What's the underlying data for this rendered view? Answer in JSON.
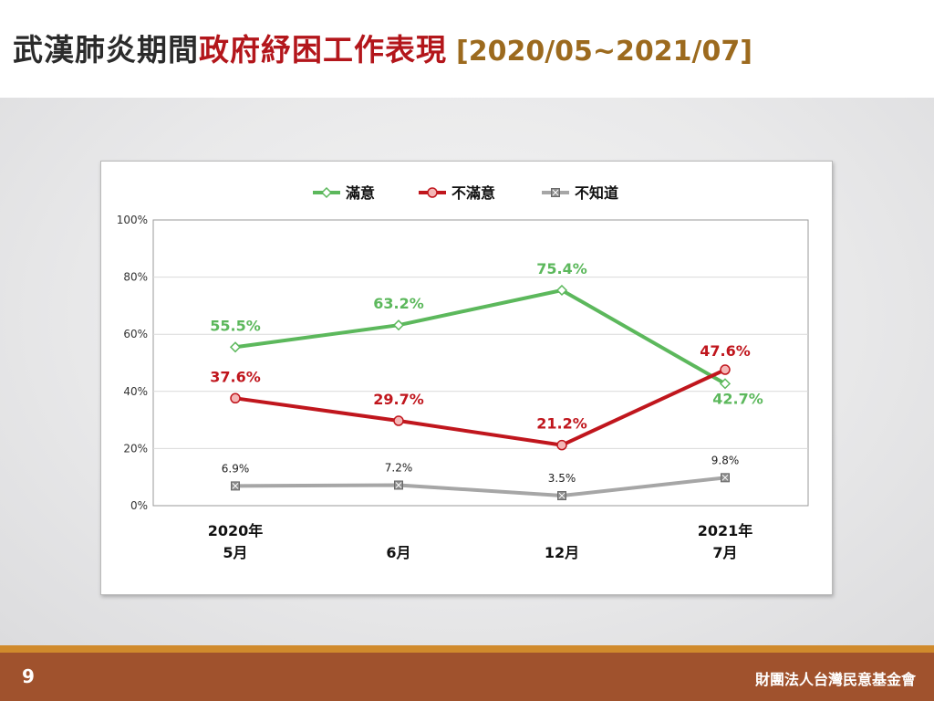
{
  "slide": {
    "title_part1": "武漢肺炎期間",
    "title_part2": "政府紓困工作表現",
    "title_period": "[2020/05~2021/07]",
    "page_number": "9",
    "organization": "財團法人台灣民意基金會"
  },
  "chart_data": {
    "type": "line",
    "categories": [
      {
        "line1": "2020年",
        "line2": "5月"
      },
      {
        "line1": "",
        "line2": "6月"
      },
      {
        "line1": "",
        "line2": "12月"
      },
      {
        "line1": "2021年",
        "line2": "7月"
      }
    ],
    "series": [
      {
        "name": "滿意",
        "color": "#5cb85c",
        "marker": "diamond",
        "values": [
          55.5,
          63.2,
          75.4,
          42.7
        ],
        "labels": [
          "55.5%",
          "63.2%",
          "75.4%",
          "42.7%"
        ]
      },
      {
        "name": "不滿意",
        "color": "#c0161d",
        "marker": "circle",
        "values": [
          37.6,
          29.7,
          21.2,
          47.6
        ],
        "labels": [
          "37.6%",
          "29.7%",
          "21.2%",
          "47.6%"
        ]
      },
      {
        "name": "不知道",
        "color": "#a6a6a6",
        "marker": "square-x",
        "values": [
          6.9,
          7.2,
          3.5,
          9.8
        ],
        "labels": [
          "6.9%",
          "7.2%",
          "3.5%",
          "9.8%"
        ]
      }
    ],
    "y_ticks": [
      "0%",
      "20%",
      "40%",
      "60%",
      "80%",
      "100%"
    ],
    "ylim": [
      0,
      100
    ],
    "grid": true,
    "legend_position": "top"
  }
}
